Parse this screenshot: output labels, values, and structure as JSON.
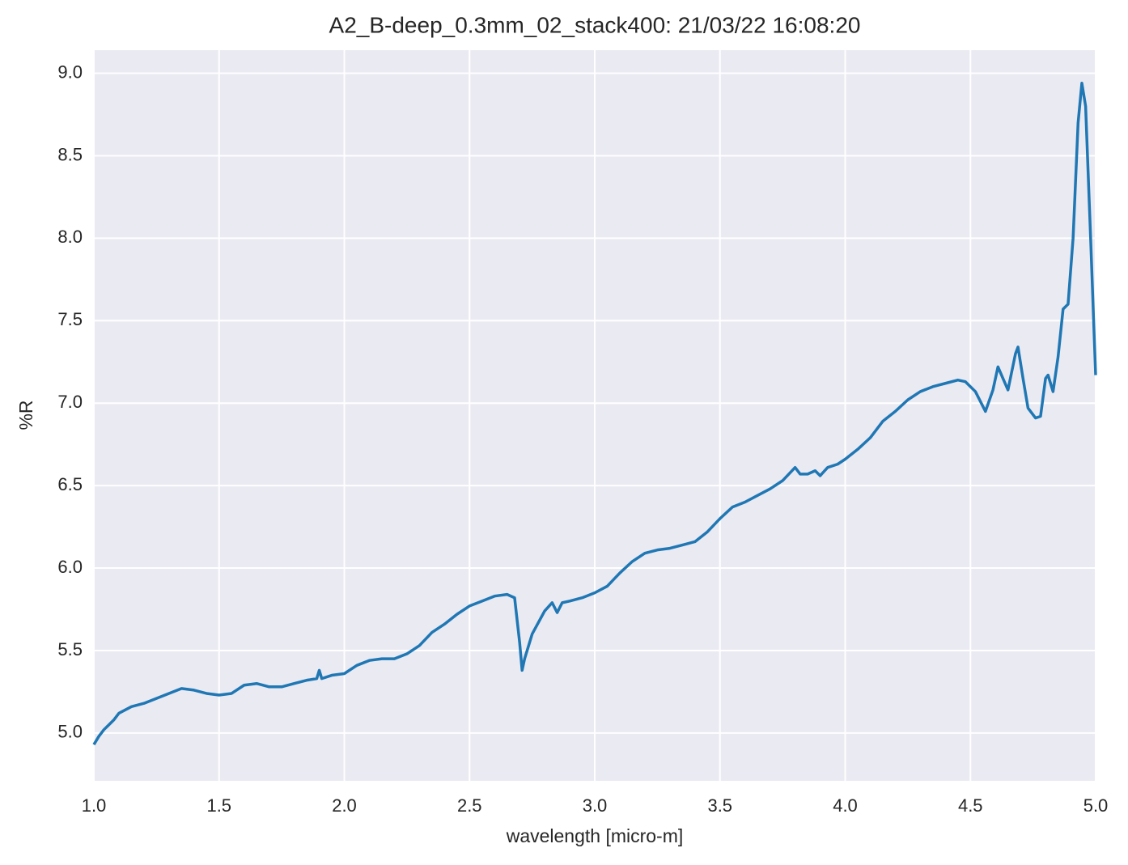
{
  "chart_data": {
    "type": "line",
    "title": "A2_B-deep_0.3mm_02_stack400:  21/03/22 16:08:20",
    "xlabel": "wavelength [micro-m]",
    "ylabel": "%R",
    "x": [
      1.0,
      1.02,
      1.04,
      1.06,
      1.08,
      1.1,
      1.15,
      1.2,
      1.25,
      1.3,
      1.35,
      1.4,
      1.45,
      1.5,
      1.55,
      1.6,
      1.65,
      1.7,
      1.75,
      1.8,
      1.85,
      1.89,
      1.9,
      1.91,
      1.95,
      2.0,
      2.05,
      2.1,
      2.15,
      2.2,
      2.25,
      2.3,
      2.35,
      2.4,
      2.45,
      2.5,
      2.55,
      2.6,
      2.65,
      2.68,
      2.7,
      2.71,
      2.72,
      2.75,
      2.8,
      2.83,
      2.85,
      2.87,
      2.9,
      2.95,
      3.0,
      3.05,
      3.1,
      3.15,
      3.2,
      3.25,
      3.3,
      3.35,
      3.4,
      3.45,
      3.5,
      3.55,
      3.6,
      3.65,
      3.7,
      3.75,
      3.8,
      3.82,
      3.85,
      3.88,
      3.9,
      3.93,
      3.97,
      4.0,
      4.05,
      4.1,
      4.15,
      4.2,
      4.25,
      4.3,
      4.35,
      4.4,
      4.45,
      4.48,
      4.52,
      4.56,
      4.59,
      4.61,
      4.63,
      4.65,
      4.68,
      4.69,
      4.71,
      4.73,
      4.76,
      4.78,
      4.8,
      4.81,
      4.83,
      4.85,
      4.87,
      4.89,
      4.91,
      4.93,
      4.945,
      4.96,
      4.98,
      5.0
    ],
    "series": [
      {
        "color": "#1f77b4",
        "values": [
          4.93,
          4.98,
          5.02,
          5.05,
          5.08,
          5.12,
          5.16,
          5.18,
          5.21,
          5.24,
          5.27,
          5.26,
          5.24,
          5.23,
          5.24,
          5.29,
          5.3,
          5.28,
          5.28,
          5.3,
          5.32,
          5.33,
          5.38,
          5.33,
          5.35,
          5.36,
          5.41,
          5.44,
          5.45,
          5.45,
          5.48,
          5.53,
          5.61,
          5.66,
          5.72,
          5.77,
          5.8,
          5.83,
          5.84,
          5.82,
          5.55,
          5.38,
          5.45,
          5.6,
          5.74,
          5.79,
          5.73,
          5.79,
          5.8,
          5.82,
          5.85,
          5.89,
          5.97,
          6.04,
          6.09,
          6.11,
          6.12,
          6.14,
          6.16,
          6.22,
          6.3,
          6.37,
          6.4,
          6.44,
          6.48,
          6.53,
          6.61,
          6.57,
          6.57,
          6.59,
          6.56,
          6.61,
          6.63,
          6.66,
          6.72,
          6.79,
          6.89,
          6.95,
          7.02,
          7.07,
          7.1,
          7.12,
          7.14,
          7.13,
          7.07,
          6.95,
          7.08,
          7.22,
          7.15,
          7.08,
          7.3,
          7.34,
          7.15,
          6.97,
          6.91,
          6.92,
          7.15,
          7.17,
          7.07,
          7.28,
          7.57,
          7.6,
          8.0,
          8.7,
          8.94,
          8.8,
          8.0,
          7.17
        ]
      }
    ],
    "xlim": [
      1.0,
      5.0
    ],
    "xticks": [
      {
        "value": 1,
        "label": "1.0"
      },
      1.5,
      {
        "value": 2,
        "label": "2.0"
      },
      2.5,
      {
        "value": 3,
        "label": "3.0"
      },
      3.5,
      {
        "value": 4,
        "label": "4.0"
      },
      4.5,
      {
        "value": 5,
        "label": "5.0"
      }
    ],
    "ylim": [
      4.71,
      9.14
    ],
    "yticks": [
      {
        "value": 5,
        "label": "5.0"
      },
      5.5,
      {
        "value": 6,
        "label": "6.0"
      },
      6.5,
      {
        "value": 7,
        "label": "7.0"
      },
      7.5,
      {
        "value": 8,
        "label": "8.0"
      },
      8.5,
      {
        "value": 9,
        "label": "9.0"
      }
    ],
    "grid": true
  }
}
